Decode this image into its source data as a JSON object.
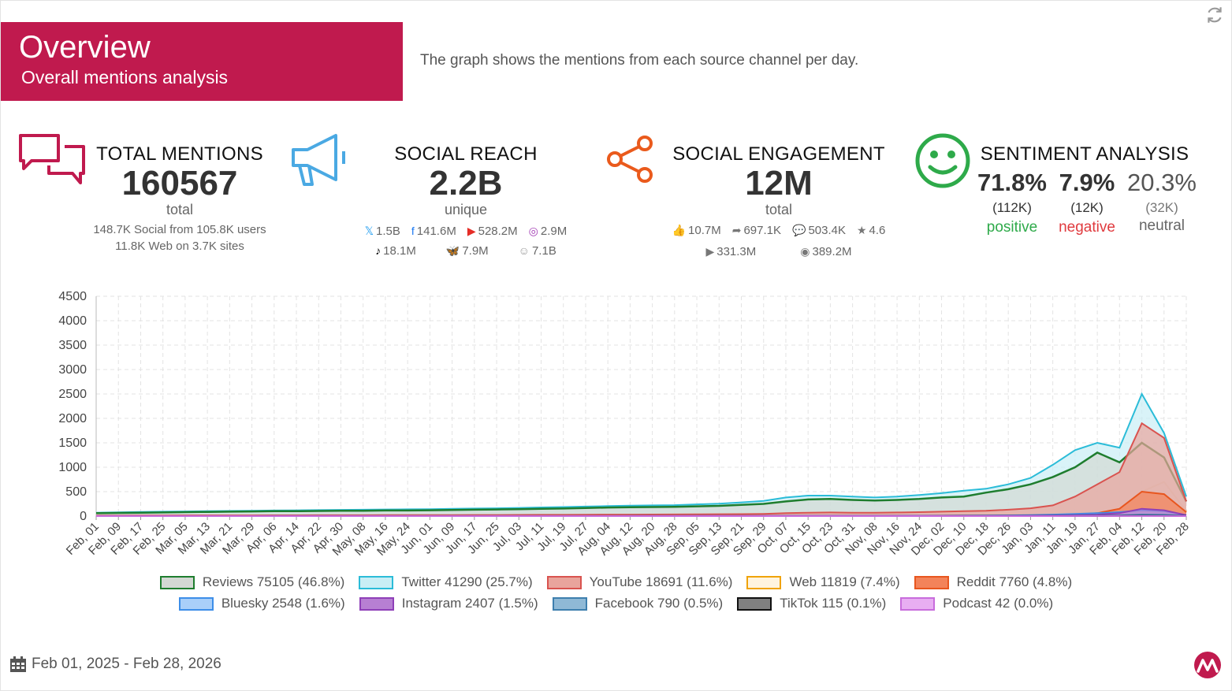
{
  "header": {
    "title": "Overview",
    "subtitle": "Overall mentions analysis",
    "description": "The graph shows the mentions from each source channel per day."
  },
  "kpis": {
    "total_mentions": {
      "title": "TOTAL MENTIONS",
      "value": "160567",
      "unit": "total",
      "social_line": "148.7K Social from 105.8K users",
      "web_line": "11.8K Web on 3.7K sites"
    },
    "social_reach": {
      "title": "SOCIAL REACH",
      "value": "2.2B",
      "unit": "unique",
      "row1": [
        {
          "icon": "x-icon",
          "glyph": "𝕏",
          "color": "#1d9bf0",
          "value": "1.5B"
        },
        {
          "icon": "facebook-icon",
          "glyph": "f",
          "color": "#1877f2",
          "value": "141.6M"
        },
        {
          "icon": "youtube-icon",
          "glyph": "▶",
          "color": "#e52d27",
          "value": "528.2M"
        },
        {
          "icon": "instagram-icon",
          "glyph": "◎",
          "color": "#a33fb5",
          "value": "2.9M"
        }
      ],
      "row2": [
        {
          "icon": "tiktok-icon",
          "glyph": "♪",
          "color": "#000000",
          "value": "18.1M"
        },
        {
          "icon": "bluesky-icon",
          "glyph": "🦋",
          "color": "#1185fe",
          "value": "7.9M"
        },
        {
          "icon": "podcast-icon",
          "glyph": "☺",
          "color": "#999999",
          "value": "7.1B"
        }
      ]
    },
    "social_engagement": {
      "title": "SOCIAL ENGAGEMENT",
      "value": "12M",
      "unit": "total",
      "row1": [
        {
          "icon": "like-icon",
          "glyph": "👍",
          "value": "10.7M"
        },
        {
          "icon": "share-icon",
          "glyph": "➦",
          "value": "697.1K"
        },
        {
          "icon": "comment-icon",
          "glyph": "💬",
          "value": "503.4K"
        },
        {
          "icon": "star-icon",
          "glyph": "★",
          "value": "4.6"
        }
      ],
      "row2": [
        {
          "icon": "play-icon",
          "glyph": "▶",
          "value": "331.3M"
        },
        {
          "icon": "eye-icon",
          "glyph": "◉",
          "value": "389.2M"
        }
      ]
    },
    "sentiment": {
      "title": "SENTIMENT ANALYSIS",
      "positive": {
        "pct": "71.8%",
        "count": "(112K)",
        "label": "positive",
        "color": "#2eaa4a"
      },
      "negative": {
        "pct": "7.9%",
        "count": "(12K)",
        "label": "negative",
        "color": "#e03a3e"
      },
      "neutral": {
        "pct": "20.3%",
        "count": "(32K)",
        "label": "neutral",
        "color": "#666666"
      }
    }
  },
  "chart_data": {
    "type": "area",
    "title": "",
    "xlabel": "",
    "ylabel": "",
    "ylim": [
      0,
      4500
    ],
    "yticks": [
      0,
      500,
      1000,
      1500,
      2000,
      2500,
      3000,
      3500,
      4000,
      4500
    ],
    "grid": true,
    "legend_position": "bottom",
    "x_tick_labels": [
      "Feb, 01",
      "Feb, 09",
      "Feb, 17",
      "Feb, 25",
      "Mar, 05",
      "Mar, 13",
      "Mar, 21",
      "Mar, 29",
      "Apr, 06",
      "Apr, 14",
      "Apr, 22",
      "Apr, 30",
      "May, 08",
      "May, 16",
      "May, 24",
      "Jun, 01",
      "Jun, 09",
      "Jun, 17",
      "Jun, 25",
      "Jul, 03",
      "Jul, 11",
      "Jul, 19",
      "Jul, 27",
      "Aug, 04",
      "Aug, 12",
      "Aug, 20",
      "Aug, 28",
      "Sep, 05",
      "Sep, 13",
      "Sep, 21",
      "Sep, 29",
      "Oct, 07",
      "Oct, 15",
      "Oct, 23",
      "Oct, 31",
      "Nov, 08",
      "Nov, 16",
      "Nov, 24",
      "Dec, 02",
      "Dec, 10",
      "Dec, 18",
      "Dec, 26",
      "Jan, 03",
      "Jan, 11",
      "Jan, 19",
      "Jan, 27",
      "Feb, 04",
      "Feb, 12",
      "Feb, 20",
      "Feb, 28"
    ],
    "series": [
      {
        "name": "Reviews 75105 (46.8%)",
        "fill": "#d3d8d3",
        "stroke": "#1e7d2e",
        "values": [
          60,
          65,
          70,
          75,
          80,
          85,
          90,
          95,
          100,
          100,
          105,
          110,
          110,
          115,
          115,
          120,
          125,
          130,
          135,
          140,
          150,
          155,
          165,
          175,
          180,
          185,
          190,
          200,
          210,
          230,
          250,
          300,
          340,
          350,
          330,
          320,
          330,
          350,
          380,
          400,
          480,
          550,
          650,
          800,
          1000,
          1300,
          1100,
          1500,
          1200,
          300
        ]
      },
      {
        "name": "Twitter 41290 (25.7%)",
        "fill": "#c9eef5",
        "stroke": "#2bbcd8",
        "values": [
          70,
          78,
          85,
          90,
          95,
          100,
          105,
          110,
          115,
          118,
          122,
          128,
          130,
          135,
          138,
          142,
          148,
          155,
          160,
          168,
          178,
          185,
          195,
          205,
          215,
          220,
          225,
          240,
          255,
          280,
          310,
          380,
          420,
          420,
          400,
          380,
          400,
          430,
          470,
          520,
          560,
          650,
          780,
          1050,
          1350,
          1500,
          1400,
          2500,
          1700,
          400
        ]
      },
      {
        "name": "YouTube 18691 (11.6%)",
        "fill": "#e9a49c",
        "stroke": "#d9534f",
        "values": [
          10,
          10,
          12,
          12,
          14,
          14,
          15,
          15,
          16,
          16,
          17,
          18,
          18,
          19,
          20,
          20,
          21,
          22,
          22,
          24,
          25,
          26,
          28,
          30,
          30,
          32,
          34,
          36,
          38,
          40,
          45,
          60,
          70,
          75,
          70,
          70,
          75,
          80,
          90,
          100,
          110,
          130,
          160,
          220,
          400,
          650,
          900,
          1900,
          1600,
          300
        ]
      },
      {
        "name": "Web 11819 (7.4%)",
        "fill": "#fff4df",
        "stroke": "#f0a30a",
        "values": [
          5,
          5,
          6,
          6,
          6,
          7,
          7,
          7,
          8,
          8,
          8,
          8,
          9,
          9,
          9,
          10,
          10,
          10,
          11,
          11,
          12,
          12,
          13,
          13,
          14,
          14,
          15,
          15,
          16,
          17,
          18,
          20,
          22,
          22,
          22,
          22,
          23,
          24,
          26,
          28,
          30,
          35,
          40,
          50,
          60,
          80,
          120,
          500,
          700,
          100
        ]
      },
      {
        "name": "Reddit 7760 (4.8%)",
        "fill": "#f3835a",
        "stroke": "#e8561f",
        "values": [
          2,
          2,
          2,
          2,
          2,
          2,
          2,
          3,
          3,
          3,
          3,
          3,
          3,
          3,
          3,
          3,
          4,
          4,
          4,
          4,
          4,
          4,
          4,
          5,
          5,
          5,
          5,
          5,
          5,
          6,
          6,
          7,
          7,
          7,
          7,
          7,
          8,
          8,
          9,
          10,
          10,
          12,
          14,
          18,
          30,
          60,
          150,
          500,
          450,
          80
        ]
      },
      {
        "name": "Bluesky 2548 (1.6%)",
        "fill": "#a9cff9",
        "stroke": "#3d8ee8",
        "values": [
          0,
          0,
          0,
          0,
          0,
          0,
          0,
          0,
          0,
          0,
          0,
          0,
          0,
          0,
          0,
          0,
          0,
          0,
          0,
          0,
          0,
          0,
          0,
          0,
          1,
          1,
          1,
          1,
          1,
          2,
          2,
          3,
          4,
          4,
          4,
          4,
          5,
          6,
          8,
          10,
          12,
          15,
          20,
          30,
          45,
          60,
          80,
          120,
          100,
          20
        ]
      },
      {
        "name": "Instagram 2407 (1.5%)",
        "fill": "#b77fd3",
        "stroke": "#8e3fb8",
        "values": [
          1,
          1,
          1,
          1,
          1,
          1,
          1,
          1,
          1,
          1,
          1,
          1,
          1,
          1,
          1,
          1,
          1,
          2,
          2,
          2,
          2,
          2,
          2,
          2,
          2,
          2,
          2,
          3,
          3,
          3,
          3,
          4,
          4,
          4,
          4,
          4,
          5,
          5,
          6,
          6,
          7,
          8,
          10,
          14,
          20,
          30,
          60,
          150,
          120,
          20
        ]
      },
      {
        "name": "Facebook 790 (0.5%)",
        "fill": "#8fb9d6",
        "stroke": "#3e7fae",
        "values": [
          0,
          0,
          0,
          0,
          0,
          0,
          0,
          0,
          1,
          1,
          1,
          1,
          1,
          1,
          1,
          1,
          1,
          1,
          1,
          1,
          1,
          1,
          1,
          1,
          1,
          1,
          1,
          1,
          1,
          1,
          1,
          2,
          2,
          2,
          2,
          2,
          2,
          2,
          3,
          3,
          3,
          4,
          5,
          6,
          8,
          10,
          14,
          30,
          25,
          5
        ]
      },
      {
        "name": "TikTok 115 (0.1%)",
        "fill": "#808080",
        "stroke": "#111111",
        "values": [
          0,
          0,
          0,
          0,
          0,
          0,
          0,
          0,
          0,
          0,
          0,
          0,
          0,
          0,
          0,
          0,
          0,
          0,
          0,
          0,
          0,
          0,
          0,
          0,
          0,
          0,
          0,
          0,
          0,
          0,
          0,
          0,
          0,
          0,
          0,
          0,
          0,
          0,
          0,
          1,
          1,
          1,
          1,
          1,
          1,
          2,
          3,
          6,
          5,
          1
        ]
      },
      {
        "name": "Podcast 42 (0.0%)",
        "fill": "#e8aef2",
        "stroke": "#c86cdc",
        "values": [
          0,
          0,
          0,
          0,
          0,
          0,
          0,
          0,
          0,
          0,
          0,
          0,
          0,
          0,
          0,
          0,
          0,
          0,
          0,
          0,
          0,
          0,
          0,
          0,
          0,
          0,
          0,
          0,
          0,
          0,
          0,
          0,
          0,
          0,
          0,
          0,
          0,
          0,
          0,
          0,
          0,
          0,
          0,
          0,
          1,
          1,
          1,
          2,
          1,
          0
        ]
      }
    ]
  },
  "footer": {
    "date_range": "Feb 01, 2025 - Feb 28, 2026"
  }
}
